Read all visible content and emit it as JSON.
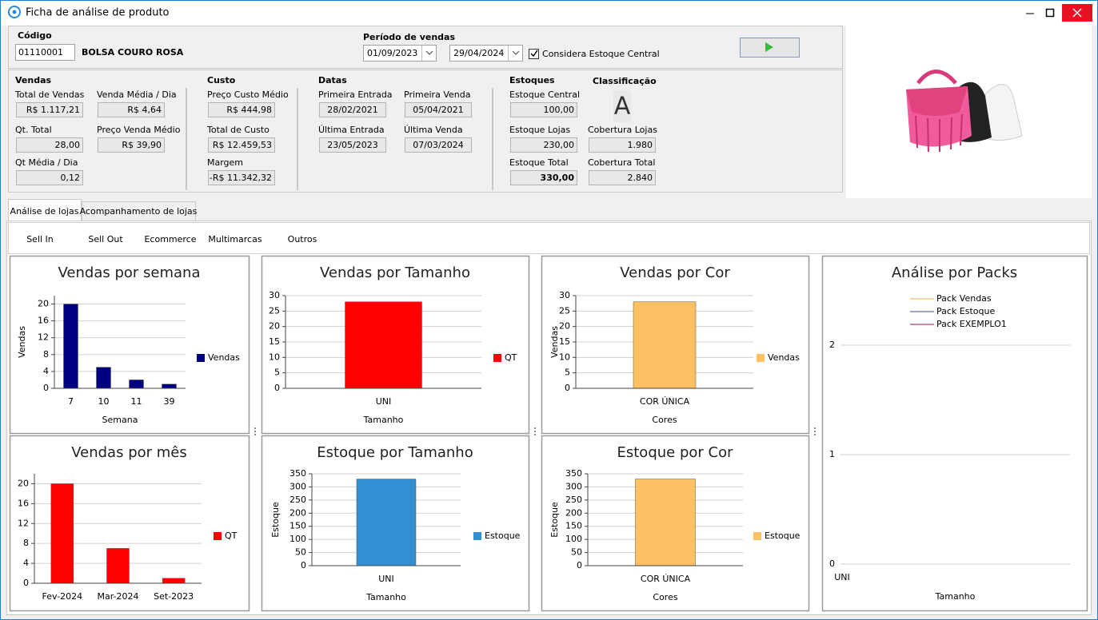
{
  "window": {
    "title": "Ficha de análise de produto"
  },
  "header": {
    "code_label": "Código",
    "code": "01110001",
    "product": "BOLSA COURO ROSA",
    "period_label": "Período de vendas",
    "date_from": "01/09/2023",
    "date_to": "29/04/2024",
    "checkbox_label": "Considera Estoque Central",
    "checkbox_checked": true
  },
  "sections": [
    {
      "title": "Vendas",
      "fields": [
        {
          "label": "Total de Vendas",
          "value": "R$ 1.117,21"
        },
        {
          "label": "Venda Média / Dia",
          "value": "R$ 4,64"
        },
        {
          "label": "Qt. Total",
          "value": "28,00"
        },
        {
          "label": "Preço Venda Médio",
          "value": "R$ 39,90"
        },
        {
          "label": "Qt Média / Dia",
          "value": "0,12"
        }
      ]
    },
    {
      "title": "Custo",
      "fields": [
        {
          "label": "Preço Custo Médio",
          "value": "R$ 444,98"
        },
        {
          "label": "Total de Custo",
          "value": "R$ 12.459,53"
        },
        {
          "label": "Margem",
          "value": "-R$ 11.342,32"
        }
      ]
    },
    {
      "title": "Datas",
      "fields": [
        {
          "label": "Primeira Entrada",
          "value": "28/02/2021"
        },
        {
          "label": "Primeira Venda",
          "value": "05/04/2021"
        },
        {
          "label": "Última Entrada",
          "value": "23/05/2023"
        },
        {
          "label": "Última Venda",
          "value": "07/03/2024"
        }
      ]
    },
    {
      "title": "Estoques",
      "fields": [
        {
          "label": "Estoque Central",
          "value": "100,00"
        },
        {
          "label": "Estoque Lojas",
          "value": "230,00"
        },
        {
          "label": "Estoque Total",
          "value": "330,00"
        }
      ]
    },
    {
      "title": "Classificação",
      "grade": "A",
      "fields": [
        {
          "label": "Cobertura Lojas",
          "value": "1.980"
        },
        {
          "label": "Cobertura Total",
          "value": "2.840"
        }
      ]
    }
  ],
  "tabs": [
    "Análise de lojas",
    "Acompanhamento de lojas"
  ],
  "active_tab": 0,
  "subtabs": [
    "Sell In",
    "Sell Out",
    "Ecommerce",
    "Multimarcas",
    "Outros"
  ],
  "chart_data": [
    {
      "type": "bar",
      "title": "Vendas por semana",
      "categories": [
        "7",
        "10",
        "11",
        "39"
      ],
      "series": [
        {
          "name": "Vendas",
          "color": "#000080",
          "values": [
            20,
            5,
            2,
            1
          ]
        }
      ],
      "ylim": [
        0,
        22
      ],
      "yticks": [
        0,
        4,
        8,
        12,
        16,
        20
      ],
      "y_label": "Vendas",
      "x_label": "Semana",
      "grid": true,
      "legend": "right"
    },
    {
      "type": "bar",
      "title": "Vendas por mês",
      "categories": [
        "Fev-2024",
        "Mar-2024",
        "Set-2023"
      ],
      "series": [
        {
          "name": "QT",
          "color": "#ff0000",
          "values": [
            20,
            7,
            1
          ]
        }
      ],
      "ylim": [
        0,
        22
      ],
      "yticks": [
        0,
        4,
        8,
        12,
        16,
        20
      ],
      "grid": true,
      "legend": "right"
    },
    {
      "type": "bar",
      "title": "Vendas por Tamanho",
      "categories": [
        "UNI"
      ],
      "series": [
        {
          "name": "QT",
          "color": "#ff0000",
          "values": [
            28
          ]
        }
      ],
      "ylim": [
        0,
        30
      ],
      "yticks": [
        0,
        5,
        10,
        15,
        20,
        25,
        30
      ],
      "x_label": "Tamanho",
      "grid": true,
      "legend": "right"
    },
    {
      "type": "bar",
      "title": "Vendas por Cor",
      "categories": [
        "COR ÚNICA"
      ],
      "series": [
        {
          "name": "Vendas",
          "color": "#fdc163",
          "values": [
            28
          ]
        }
      ],
      "ylim": [
        0,
        30
      ],
      "yticks": [
        0,
        5,
        10,
        15,
        20,
        25,
        30
      ],
      "y_label": "Vendas",
      "x_label": "Cores",
      "grid": true,
      "legend": "right"
    },
    {
      "type": "bar",
      "title": "Estoque por Tamanho",
      "categories": [
        "UNI"
      ],
      "series": [
        {
          "name": "Estoque",
          "color": "#3290d2",
          "values": [
            330
          ]
        }
      ],
      "ylim": [
        0,
        350
      ],
      "yticks": [
        0,
        50,
        100,
        150,
        200,
        250,
        300,
        350
      ],
      "y_label": "Estoque",
      "x_label": "Tamanho",
      "grid": true,
      "legend": "right"
    },
    {
      "type": "bar",
      "title": "Estoque por Cor",
      "categories": [
        "COR ÚNICA"
      ],
      "series": [
        {
          "name": "Estoque",
          "color": "#fdc163",
          "values": [
            330
          ]
        }
      ],
      "ylim": [
        0,
        350
      ],
      "yticks": [
        0,
        50,
        100,
        150,
        200,
        250,
        300,
        350
      ],
      "y_label": "Estoque",
      "x_label": "Cores",
      "grid": true,
      "legend": "right"
    },
    {
      "type": "line",
      "title": "Análise por Packs",
      "categories": [
        "UNI"
      ],
      "series": [
        {
          "name": "Pack Vendas",
          "color": "#f0b040",
          "values": [
            null
          ]
        },
        {
          "name": "Pack Estoque",
          "color": "#3b4a8a",
          "values": [
            null
          ]
        },
        {
          "name": "Pack EXEMPLO1",
          "color": "#8b1a4a",
          "values": [
            null
          ]
        }
      ],
      "ylim": [
        0,
        2
      ],
      "yticks": [
        0,
        1,
        2
      ],
      "x_label": "Tamanho",
      "grid": true,
      "legend": "top"
    }
  ]
}
